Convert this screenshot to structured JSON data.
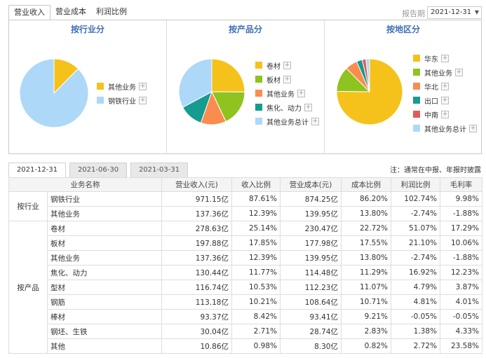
{
  "top_tabs": [
    "营业收入",
    "营业成本",
    "利润比例"
  ],
  "report_label": "报告期",
  "report_period": "2021-12-31",
  "charts": [
    {
      "title": "按行业分",
      "slices": [
        {
          "label": "其他业务",
          "value": 12.39,
          "color": "#f5c21b"
        },
        {
          "label": "钢铁行业",
          "value": 87.61,
          "color": "#aed8f8"
        }
      ]
    },
    {
      "title": "按产品分",
      "slices": [
        {
          "label": "卷材",
          "value": 25.14,
          "color": "#f5c21b"
        },
        {
          "label": "板材",
          "value": 17.85,
          "color": "#8fc31f"
        },
        {
          "label": "其他业务",
          "value": 12.39,
          "color": "#fb8c4f"
        },
        {
          "label": "焦化、动力",
          "value": 11.77,
          "color": "#169b8f"
        },
        {
          "label": "其他业务总计",
          "value": 32.85,
          "color": "#aed8f8"
        }
      ]
    },
    {
      "title": "按地区分",
      "slices": [
        {
          "label": "华东",
          "value": 75.2,
          "color": "#f5c21b"
        },
        {
          "label": "其他业务",
          "value": 12.39,
          "color": "#8fc31f"
        },
        {
          "label": "华北",
          "value": 6.0,
          "color": "#fb8c4f"
        },
        {
          "label": "出口",
          "value": 2.8,
          "color": "#169b8f"
        },
        {
          "label": "中南",
          "value": 1.8,
          "color": "#e05a5a"
        },
        {
          "label": "其他业务总计",
          "value": 1.81,
          "color": "#aed8f8"
        }
      ]
    }
  ],
  "date_tabs": [
    "2021-12-31",
    "2021-06-30",
    "2021-03-31"
  ],
  "note": "注：通常在中报、年报时披露",
  "table": {
    "headers": [
      "业务名称",
      "营业收入(元)",
      "收入比例",
      "营业成本(元)",
      "成本比例",
      "利润比例",
      "毛利率"
    ],
    "groups": [
      {
        "name": "按行业",
        "rows": [
          [
            "钢铁行业",
            "971.15亿",
            "87.61%",
            "874.25亿",
            "86.20%",
            "102.74%",
            "9.98%"
          ],
          [
            "其他业务",
            "137.36亿",
            "12.39%",
            "139.95亿",
            "13.80%",
            "-2.74%",
            "-1.88%"
          ]
        ]
      },
      {
        "name": "按产品",
        "rows": [
          [
            "卷材",
            "278.63亿",
            "25.14%",
            "230.47亿",
            "22.72%",
            "51.07%",
            "17.29%"
          ],
          [
            "板材",
            "197.88亿",
            "17.85%",
            "177.98亿",
            "17.55%",
            "21.10%",
            "10.06%"
          ],
          [
            "其他业务",
            "137.36亿",
            "12.39%",
            "139.95亿",
            "13.80%",
            "-2.74%",
            "-1.88%"
          ],
          [
            "焦化、动力",
            "130.44亿",
            "11.77%",
            "114.48亿",
            "11.29%",
            "16.92%",
            "12.23%"
          ],
          [
            "型材",
            "116.74亿",
            "10.53%",
            "112.23亿",
            "11.07%",
            "4.79%",
            "3.87%"
          ],
          [
            "钢筋",
            "113.18亿",
            "10.21%",
            "108.64亿",
            "10.71%",
            "4.81%",
            "4.01%"
          ],
          [
            "棒材",
            "93.37亿",
            "8.42%",
            "93.41亿",
            "9.21%",
            "-0.05%",
            "-0.05%"
          ],
          [
            "钢坯、生铁",
            "30.04亿",
            "2.71%",
            "28.74亿",
            "2.83%",
            "1.38%",
            "4.33%"
          ],
          [
            "其他",
            "10.86亿",
            "0.98%",
            "8.30亿",
            "0.82%",
            "2.72%",
            "23.58%"
          ]
        ]
      }
    ]
  }
}
